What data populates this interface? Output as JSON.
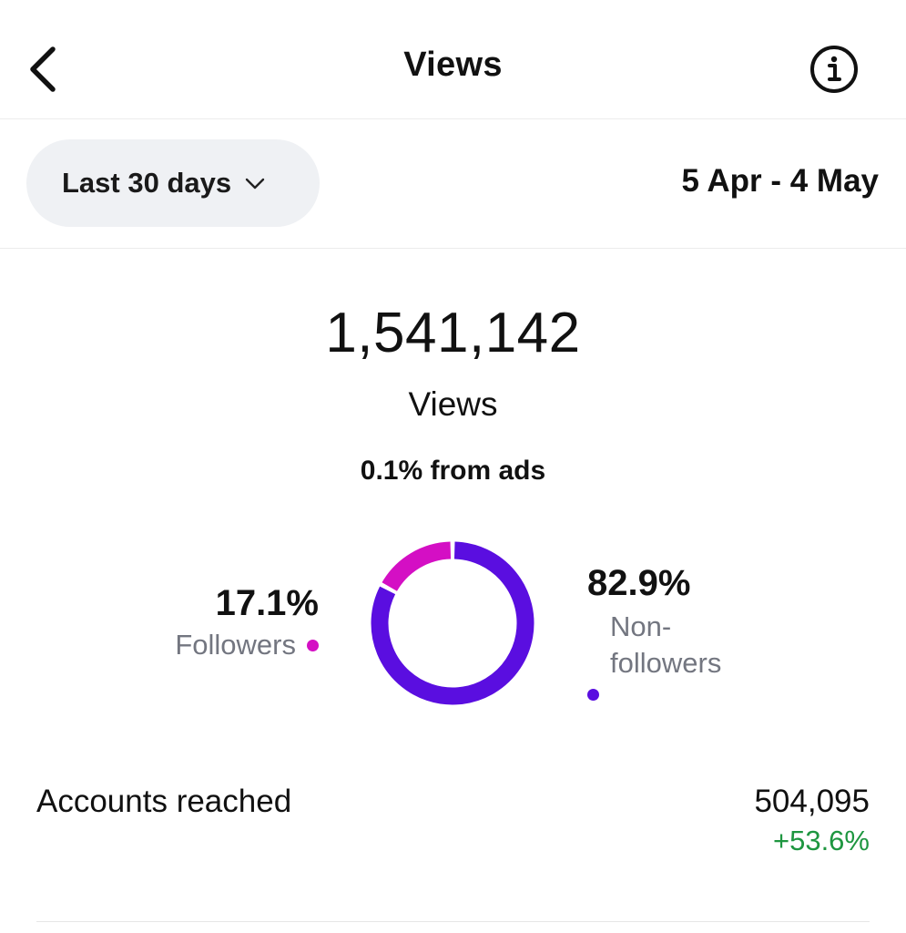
{
  "header": {
    "title": "Views",
    "back_icon": "chevron-left-icon",
    "info_icon": "info-icon"
  },
  "filter": {
    "range_label": "Last 30 days",
    "range_icon": "chevron-down-icon",
    "date_range": "5 Apr - 4 May"
  },
  "summary": {
    "total": "1,541,142",
    "label": "Views",
    "ads_text": "0.1% from ads"
  },
  "chart_data": {
    "type": "pie",
    "categories": [
      "Followers",
      "Non-followers"
    ],
    "values": [
      17.1,
      82.9
    ],
    "colors": [
      "#d40fc4",
      "#5a0ee0"
    ],
    "labels": {
      "followers_pct": "17.1%",
      "followers": "Followers",
      "nonfollowers_pct": "82.9%",
      "nonfollowers_line1": "Non-",
      "nonfollowers_line2": "followers"
    }
  },
  "accounts_reached": {
    "label": "Accounts reached",
    "value": "504,095",
    "change": "+53.6%",
    "change_color": "#1e9640"
  }
}
